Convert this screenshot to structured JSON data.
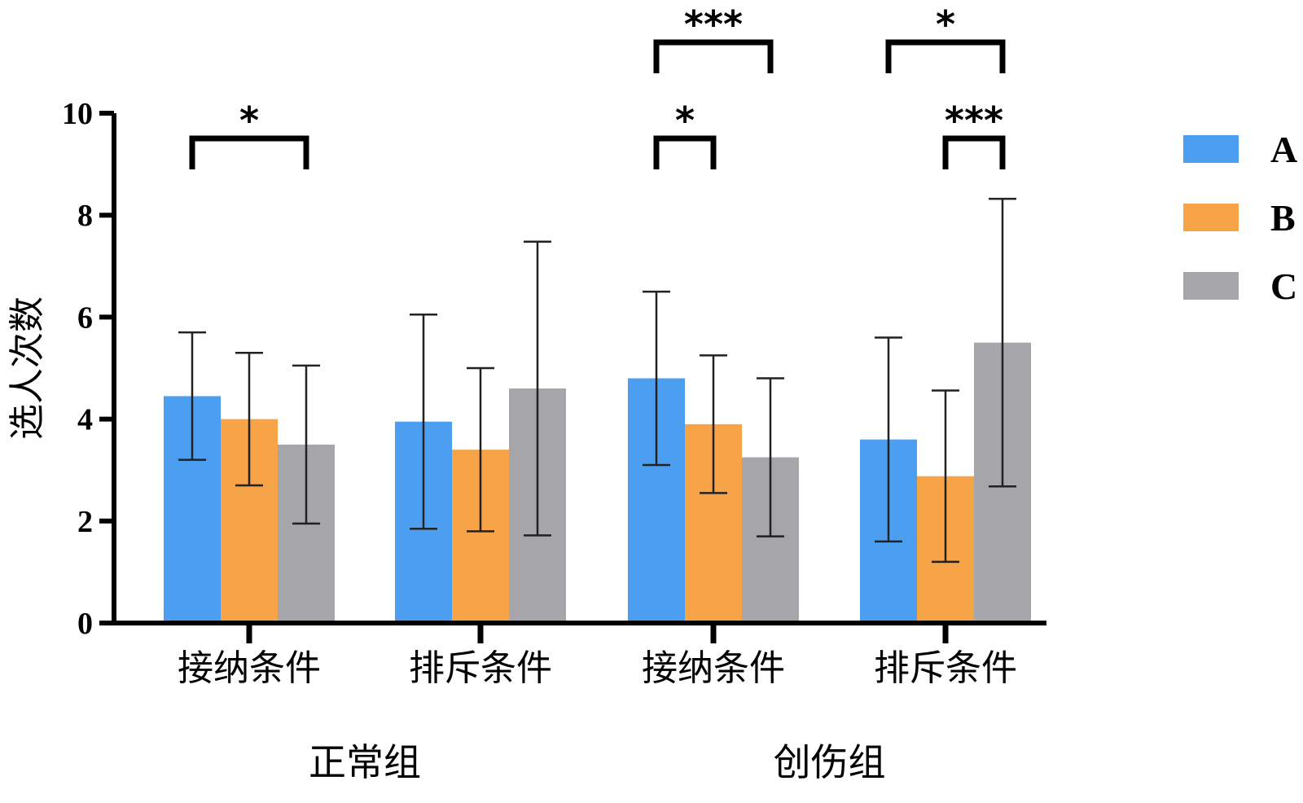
{
  "chart_data": {
    "type": "bar",
    "title": "",
    "xlabel": "",
    "ylabel": "选人次数",
    "ylim": [
      0,
      10
    ],
    "yticks": [
      "0",
      "2",
      "4",
      "6",
      "8",
      "10"
    ],
    "groups": [
      {
        "label": "正常组",
        "categories": [
          "接纳条件",
          "排斥条件"
        ]
      },
      {
        "label": "创伤组",
        "categories": [
          "接纳条件",
          "排斥条件"
        ]
      }
    ],
    "categories": [
      "接纳条件",
      "排斥条件",
      "接纳条件",
      "排斥条件"
    ],
    "series": [
      {
        "name": "A",
        "color": "#4c9ff0",
        "values": [
          4.45,
          3.95,
          4.8,
          3.6
        ],
        "errors": [
          1.25,
          2.1,
          1.7,
          2.0
        ]
      },
      {
        "name": "B",
        "color": "#f7a347",
        "values": [
          4.0,
          3.4,
          3.9,
          2.88
        ],
        "errors": [
          1.3,
          1.6,
          1.35,
          1.68
        ]
      },
      {
        "name": "C",
        "color": "#a5a5aa",
        "values": [
          3.5,
          4.6,
          3.25,
          5.5
        ],
        "errors": [
          1.55,
          2.88,
          1.55,
          2.82
        ]
      }
    ],
    "legend": {
      "position": "right"
    },
    "significance": [
      {
        "category": 0,
        "from": "A",
        "to": "C",
        "label": "*",
        "level": 1
      },
      {
        "category": 2,
        "from": "A",
        "to": "B",
        "label": "*",
        "level": 1
      },
      {
        "category": 2,
        "from": "A",
        "to": "C",
        "label": "***",
        "level": 2
      },
      {
        "category": 3,
        "from": "B",
        "to": "C",
        "label": "***",
        "level": 1
      },
      {
        "category": 3,
        "from": "A",
        "to": "C",
        "label": "*",
        "level": 2
      }
    ]
  }
}
